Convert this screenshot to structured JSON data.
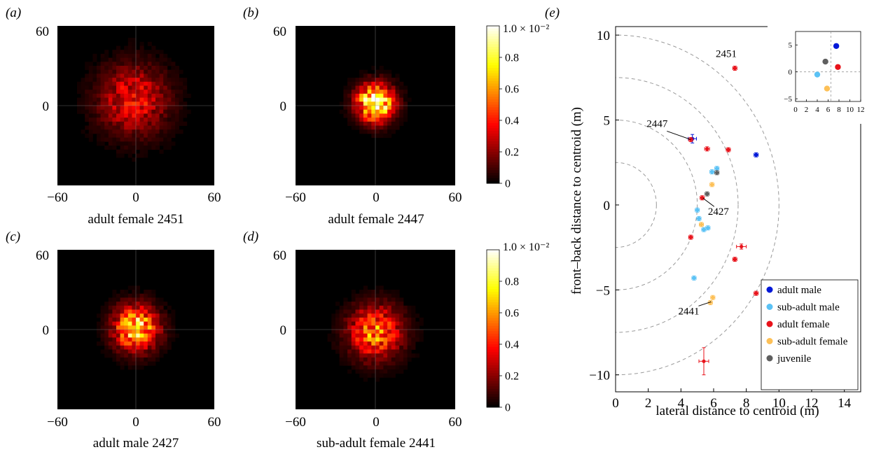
{
  "chart_data": [
    {
      "panel_label": "(a)",
      "type": "heatmap",
      "title": "adult female 2451",
      "ticks": {
        "x": [
          "−60",
          "0",
          "60"
        ],
        "y": [
          "60",
          "0"
        ]
      },
      "xlim": [
        -60,
        60
      ],
      "ylim": [
        -60,
        60
      ],
      "peak": 0.35,
      "spread": 17,
      "center": [
        -2,
        4
      ]
    },
    {
      "panel_label": "(b)",
      "type": "heatmap",
      "title": "adult female 2447",
      "ticks": {
        "x": [
          "−60",
          "0",
          "60"
        ],
        "y": [
          "60",
          "0"
        ]
      },
      "xlim": [
        -60,
        60
      ],
      "ylim": [
        -60,
        60
      ],
      "peak": 1.0,
      "spread": 9,
      "center": [
        0,
        2
      ]
    },
    {
      "panel_label": "(c)",
      "type": "heatmap",
      "title": "adult male 2427",
      "ticks": {
        "x": [
          "−60",
          "0",
          "60"
        ],
        "y": [
          "60",
          "0"
        ]
      },
      "xlim": [
        -60,
        60
      ],
      "ylim": [
        -60,
        60
      ],
      "peak": 0.75,
      "spread": 11,
      "center": [
        0,
        1
      ]
    },
    {
      "panel_label": "(d)",
      "type": "heatmap",
      "title": "sub-adult female 2441",
      "ticks": {
        "x": [
          "−60",
          "0",
          "60"
        ],
        "y": [
          "60",
          "0"
        ]
      },
      "xlim": [
        -60,
        60
      ],
      "ylim": [
        -60,
        60
      ],
      "peak": 0.55,
      "spread": 13,
      "center": [
        0,
        -2
      ]
    },
    {
      "type": "colorbar",
      "for_panels": [
        "(a)",
        "(b)"
      ],
      "top_label": "1.0 × 10⁻²",
      "ticks": [
        "0.8",
        "0.6",
        "0.4",
        "0.2",
        "0"
      ]
    },
    {
      "type": "colorbar",
      "for_panels": [
        "(c)",
        "(d)"
      ],
      "top_label": "1.0 × 10⁻²",
      "ticks": [
        "0.8",
        "0.6",
        "0.4",
        "0.2",
        "0"
      ]
    },
    {
      "panel_label": "(e)",
      "type": "scatter",
      "xlabel": "lateral distance to centroid (m)",
      "ylabel": "front–back distance to centroid (m)",
      "xlim": [
        0,
        15
      ],
      "ylim": [
        -11,
        10.5
      ],
      "xticks": [
        "0",
        "2",
        "4",
        "6",
        "8",
        "10",
        "12",
        "14"
      ],
      "yticks": [
        "10",
        "5",
        "0",
        "−5",
        "−10"
      ],
      "circles": [
        2.5,
        5,
        7.5,
        10
      ],
      "legend": {
        "position": "bottom-right"
      },
      "series": [
        {
          "name": "adult male",
          "color": "#0018d8",
          "points": [
            [
              4.7,
              3.9,
              0.25,
              0.25
            ],
            [
              8.6,
              2.95,
              0.1,
              0.06
            ]
          ]
        },
        {
          "name": "sub-adult male",
          "color": "#5bc2f5",
          "points": [
            [
              5.0,
              -0.3,
              0.06,
              0.06
            ],
            [
              5.1,
              -0.8,
              0.06,
              0.06
            ],
            [
              5.4,
              -1.45,
              0.08,
              0.08
            ],
            [
              5.65,
              -1.35,
              0.08,
              0.08
            ],
            [
              5.9,
              1.95,
              0.06,
              0.06
            ],
            [
              6.2,
              2.15,
              0.06,
              0.06
            ],
            [
              4.8,
              -4.3,
              0.12,
              0.12
            ]
          ]
        },
        {
          "name": "adult female",
          "color": "#e8121a",
          "points": [
            [
              7.3,
              8.05,
              0.1,
              0.12
            ],
            [
              4.6,
              3.85,
              0.05,
              0.05
            ],
            [
              5.6,
              3.3,
              0.15,
              0.12
            ],
            [
              6.9,
              3.25,
              0.1,
              0.06
            ],
            [
              5.3,
              0.42,
              0.1,
              0.06
            ],
            [
              4.6,
              -1.9,
              0.12,
              0.06
            ],
            [
              7.7,
              -2.45,
              0.3,
              0.15
            ],
            [
              7.3,
              -3.2,
              0.1,
              0.06
            ],
            [
              8.6,
              -5.2,
              0.12,
              0.06
            ],
            [
              5.4,
              -9.2,
              0.3,
              0.8
            ]
          ]
        },
        {
          "name": "sub-adult female",
          "color": "#fdc057",
          "points": [
            [
              5.25,
              -1.15,
              0.06,
              0.06
            ],
            [
              5.9,
              1.2,
              0.06,
              0.06
            ],
            [
              5.95,
              -5.45,
              0.06,
              0.12
            ],
            [
              5.8,
              -5.75,
              0.06,
              0.12
            ]
          ]
        },
        {
          "name": "juvenile",
          "color": "#5f5f5f",
          "points": [
            [
              5.6,
              0.65,
              0.08,
              0.08
            ],
            [
              6.2,
              1.9,
              0.06,
              0.06
            ]
          ]
        }
      ],
      "annotations": [
        {
          "text": "2451",
          "at": [
            7.2,
            8.1
          ]
        },
        {
          "text": "2447",
          "at": [
            4.6,
            3.85
          ]
        },
        {
          "text": "2427",
          "at": [
            5.35,
            0.4
          ]
        },
        {
          "text": "2441",
          "at": [
            5.85,
            -5.7
          ]
        }
      ],
      "inset": {
        "xlim": [
          0,
          12
        ],
        "ylim": [
          -5.5,
          7.5
        ],
        "xticks": [
          "0",
          "2",
          "4",
          "6",
          "8",
          "10",
          "12"
        ],
        "yticks": [
          "5",
          "0",
          "−5"
        ],
        "crosshair": [
          6.5,
          0
        ],
        "points": [
          {
            "series": "adult male",
            "x": 7.5,
            "y": 4.8
          },
          {
            "series": "adult female",
            "x": 7.8,
            "y": 0.9
          },
          {
            "series": "juvenile",
            "x": 5.5,
            "y": 1.9
          },
          {
            "series": "sub-adult male",
            "x": 4.0,
            "y": -0.5
          },
          {
            "series": "sub-adult female",
            "x": 5.8,
            "y": -3.1
          }
        ]
      }
    }
  ]
}
